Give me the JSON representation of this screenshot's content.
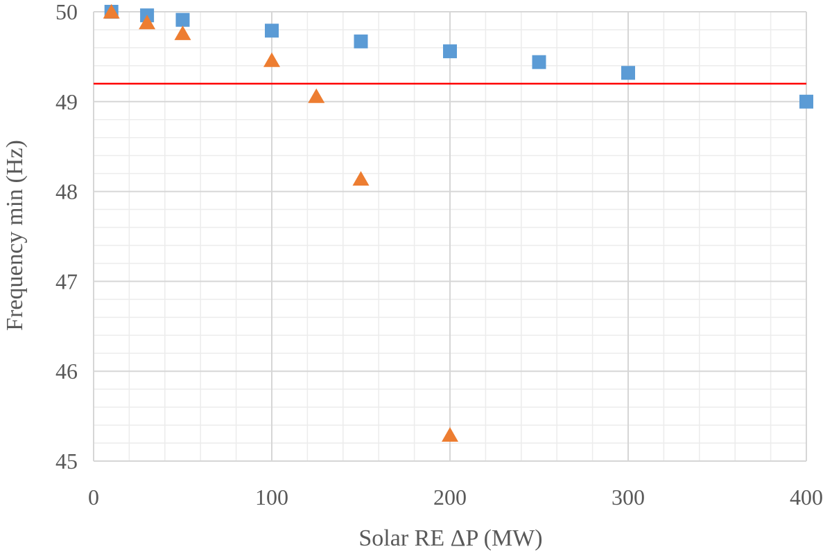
{
  "chart_data": {
    "type": "scatter",
    "title": "",
    "xlabel": "Solar RE ΔP (MW)",
    "ylabel": "Frequency min (Hz)",
    "xlim": [
      0,
      400
    ],
    "ylim": [
      45,
      50
    ],
    "x_ticks": [
      0,
      100,
      200,
      300,
      400
    ],
    "y_ticks": [
      45,
      46,
      47,
      48,
      49,
      50
    ],
    "x_minor_step": 20,
    "y_minor_step": 0.2,
    "grid": true,
    "legend": "none",
    "threshold_line": {
      "y": 49.2,
      "color": "#ff0000"
    },
    "series": [
      {
        "marker": "square",
        "color": "#5b9bd5",
        "points": [
          [
            10,
            50.0
          ],
          [
            30,
            49.96
          ],
          [
            50,
            49.91
          ],
          [
            100,
            49.79
          ],
          [
            150,
            49.67
          ],
          [
            200,
            49.56
          ],
          [
            250,
            49.44
          ],
          [
            300,
            49.32
          ],
          [
            400,
            49.0
          ]
        ]
      },
      {
        "marker": "triangle",
        "color": "#ed7d31",
        "points": [
          [
            10,
            49.99
          ],
          [
            30,
            49.87
          ],
          [
            50,
            49.75
          ],
          [
            100,
            49.45
          ],
          [
            125,
            49.05
          ],
          [
            150,
            48.13
          ],
          [
            200,
            45.28
          ]
        ]
      }
    ]
  }
}
